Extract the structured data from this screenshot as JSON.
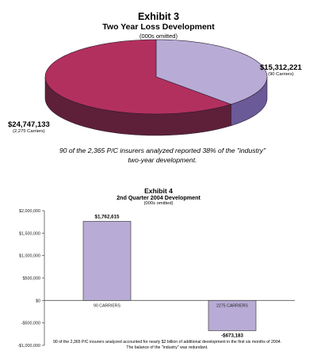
{
  "exhibit3": {
    "title": "Exhibit 3",
    "subtitle": "Two Year Loss Development",
    "unit_note": "(000s omitted)",
    "caption_line1": "90 of the 2,365 P/C insurers analyzed reported 38% of the \"industry\"",
    "caption_line2": "two-year development.",
    "chart_data": {
      "type": "pie",
      "title": "Two Year Loss Development",
      "slices": [
        {
          "value_label": "$15,312,221",
          "carriers_label": "(90 Carriers)",
          "value": 15312221,
          "top_color": "#b8acd6",
          "side_color": "#6a5a98"
        },
        {
          "value_label": "$24,747,133",
          "carriers_label": "(2,275 Carriers)",
          "value": 24747133,
          "top_color": "#b2305e",
          "side_color": "#5e2038"
        }
      ]
    }
  },
  "exhibit4": {
    "title": "Exhibit 4",
    "subtitle": "2nd Quarter 2004 Development",
    "unit_note": "(000s omitted)",
    "note_line1": "90 of the 2,365 P/C insurers analyzed accounted for nearly $2 billion of additional development in the first six months of 2004.",
    "note_line2": "The balance of the \"industry\" was redundant.",
    "chart_data": {
      "type": "bar",
      "categories": [
        "90 CARRIERS",
        "2275 CARRIERS"
      ],
      "values": [
        1762615,
        -673183
      ],
      "value_labels": [
        "$1,762,615",
        "-$673,183"
      ],
      "ylim": [
        -1000000,
        2000000
      ],
      "yticks": [
        2000000,
        1500000,
        1000000,
        500000,
        0,
        -500000,
        -1000000
      ],
      "ytick_labels": [
        "$2,000,000",
        "$1,500,000",
        "$1,000,000",
        "$500,000",
        "$0",
        "-$500,000",
        "-$1,000,000"
      ],
      "bar_color": "#b8acd6",
      "grid": false
    }
  }
}
